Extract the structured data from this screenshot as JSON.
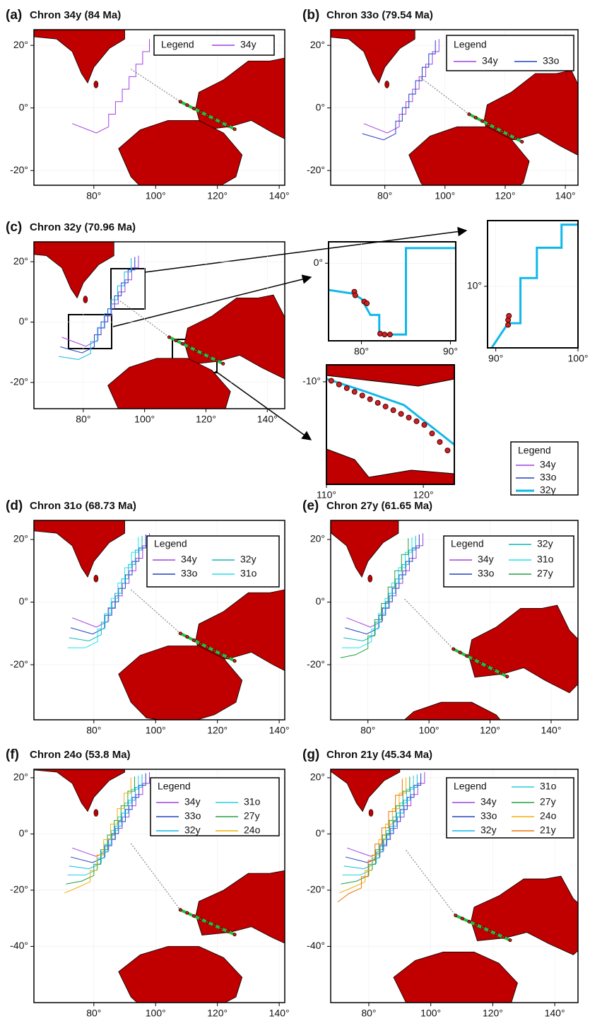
{
  "panels": [
    {
      "label": "(a)",
      "title": "Chron 34y (84 Ma)",
      "xlim": [
        60.6,
        141.8
      ],
      "ylim": [
        -24.7,
        25
      ],
      "xticks": [
        {
          "value": 80,
          "label": "80°"
        },
        {
          "value": 100,
          "label": "100°"
        },
        {
          "value": 120,
          "label": "120°"
        },
        {
          "value": 140,
          "label": "140°"
        }
      ],
      "yticks": [
        {
          "value": 20,
          "label": "20°"
        },
        {
          "value": 0,
          "label": "0°"
        },
        {
          "value": -20,
          "label": "-20°"
        }
      ],
      "legend": {
        "title": "Legend",
        "entries": [
          {
            "name": "34y",
            "color": "#a040e0"
          }
        ]
      }
    },
    {
      "label": "(b)",
      "title": "Chron 33o (79.54 Ma)",
      "xlim": [
        62,
        144.2
      ],
      "ylim": [
        -24.7,
        25
      ],
      "xticks": [
        {
          "value": 80,
          "label": "80°"
        },
        {
          "value": 100,
          "label": "100°"
        },
        {
          "value": 120,
          "label": "120°"
        },
        {
          "value": 140,
          "label": "140°"
        }
      ],
      "yticks": [
        {
          "value": 20,
          "label": "20°"
        },
        {
          "value": 0,
          "label": "0°"
        },
        {
          "value": -20,
          "label": "-20°"
        }
      ],
      "legend": {
        "title": "Legend",
        "entries": [
          {
            "name": "34y",
            "color": "#a040e0"
          },
          {
            "name": "33o",
            "color": "#2040c0"
          }
        ]
      }
    },
    {
      "label": "(c)",
      "title": "Chron 32y (70.96 Ma)",
      "xlim": [
        63.9,
        145.7
      ],
      "ylim": [
        -28.7,
        26.6
      ],
      "xticks": [
        {
          "value": 80,
          "label": "80°"
        },
        {
          "value": 100,
          "label": "100°"
        },
        {
          "value": 120,
          "label": "120°"
        },
        {
          "value": 140,
          "label": "140°"
        }
      ],
      "yticks": [
        {
          "value": 20,
          "label": "20°"
        },
        {
          "value": 0,
          "label": "0°"
        },
        {
          "value": -20,
          "label": "-20°"
        }
      ],
      "legend": {
        "title": "Legend",
        "entries": [
          {
            "name": "34y",
            "color": "#a040e0"
          },
          {
            "name": "33o",
            "color": "#2040c0"
          },
          {
            "name": "32y",
            "color": "#10b8e8"
          }
        ]
      }
    },
    {
      "label": "(d)",
      "title": "Chron 31o (68.73 Ma)",
      "xlim": [
        60.6,
        141.8
      ],
      "ylim": [
        -37.6,
        26.1
      ],
      "xticks": [
        {
          "value": 80,
          "label": "80°"
        },
        {
          "value": 100,
          "label": "100°"
        },
        {
          "value": 120,
          "label": "120°"
        },
        {
          "value": 140,
          "label": "140°"
        }
      ],
      "yticks": [
        {
          "value": 20,
          "label": "20°"
        },
        {
          "value": 0,
          "label": "0°"
        },
        {
          "value": -20,
          "label": "-20°"
        }
      ],
      "legend": {
        "title": "Legend",
        "entries": [
          {
            "name": "34y",
            "color": "#a040e0"
          },
          {
            "name": "33o",
            "color": "#2040c0"
          },
          {
            "name": "32y",
            "color": "#10b8b8"
          },
          {
            "name": "31o",
            "color": "#20e0f0"
          }
        ]
      }
    },
    {
      "label": "(e)",
      "title": "Chron 27y (61.65 Ma)",
      "xlim": [
        67.8,
        148.8
      ],
      "ylim": [
        -37.6,
        26.1
      ],
      "xticks": [
        {
          "value": 80,
          "label": "80°"
        },
        {
          "value": 100,
          "label": "100°"
        },
        {
          "value": 120,
          "label": "120°"
        },
        {
          "value": 140,
          "label": "140°"
        }
      ],
      "yticks": [
        {
          "value": 20,
          "label": "20°"
        },
        {
          "value": 0,
          "label": "0°"
        },
        {
          "value": -20,
          "label": "-20°"
        }
      ],
      "legend": {
        "title": "Legend",
        "entries": [
          {
            "name": "34y",
            "color": "#a040e0"
          },
          {
            "name": "33o",
            "color": "#2040c0"
          },
          {
            "name": "32y",
            "color": "#10b8b8"
          },
          {
            "name": "31o",
            "color": "#20e0f0"
          },
          {
            "name": "27y",
            "color": "#20a040"
          }
        ]
      }
    },
    {
      "label": "(f)",
      "title": "Chron 24o (53.8 Ma)",
      "xlim": [
        60.6,
        141.8
      ],
      "ylim": [
        -60,
        23
      ],
      "xticks": [
        {
          "value": 80,
          "label": "80°"
        },
        {
          "value": 100,
          "label": "100°"
        },
        {
          "value": 120,
          "label": "120°"
        },
        {
          "value": 140,
          "label": "140°"
        }
      ],
      "yticks": [
        {
          "value": 20,
          "label": "20°"
        },
        {
          "value": 0,
          "label": "0°"
        },
        {
          "value": -20,
          "label": "-20°"
        },
        {
          "value": -40,
          "label": "-40°"
        }
      ],
      "legend": {
        "title": "Legend",
        "entries": [
          {
            "name": "34y",
            "color": "#a040e0"
          },
          {
            "name": "33o",
            "color": "#2040c0"
          },
          {
            "name": "32y",
            "color": "#10b8e8"
          },
          {
            "name": "31o",
            "color": "#20d0e0"
          },
          {
            "name": "27y",
            "color": "#20a040"
          },
          {
            "name": "24o",
            "color": "#f0b000"
          }
        ]
      }
    },
    {
      "label": "(g)",
      "title": "Chron 21y (45.34 Ma)",
      "xlim": [
        67.7,
        147.5
      ],
      "ylim": [
        -60,
        23
      ],
      "xticks": [
        {
          "value": 80,
          "label": "80°"
        },
        {
          "value": 100,
          "label": "100°"
        },
        {
          "value": 120,
          "label": "120°"
        },
        {
          "value": 140,
          "label": "140°"
        }
      ],
      "yticks": [
        {
          "value": 20,
          "label": "20°"
        },
        {
          "value": 0,
          "label": "0°"
        },
        {
          "value": -20,
          "label": "-20°"
        },
        {
          "value": -40,
          "label": "-40°"
        }
      ],
      "legend": {
        "title": "Legend",
        "entries": [
          {
            "name": "34y",
            "color": "#a040e0"
          },
          {
            "name": "33o",
            "color": "#2040c0"
          },
          {
            "name": "32y",
            "color": "#10b8e8"
          },
          {
            "name": "31o",
            "color": "#20d0e0"
          },
          {
            "name": "27y",
            "color": "#20a040"
          },
          {
            "name": "24o",
            "color": "#f0b000"
          },
          {
            "name": "21y",
            "color": "#f07000"
          }
        ]
      }
    }
  ],
  "insets": [
    {
      "xlim": [
        76.3,
        90.6
      ],
      "ylim": [
        -8.7,
        2.4
      ],
      "xticks": [
        {
          "value": 80,
          "label": "80°"
        },
        {
          "value": 90,
          "label": "90°"
        }
      ],
      "yticks": [
        {
          "value": 0,
          "label": "0°"
        }
      ]
    },
    {
      "xlim": [
        89,
        100
      ],
      "ylim": [
        2.5,
        18
      ],
      "xticks": [
        {
          "value": 90,
          "label": "90°"
        },
        {
          "value": 100,
          "label": "100°"
        }
      ],
      "yticks": [
        {
          "value": 10,
          "label": "10°"
        }
      ]
    },
    {
      "xlim": [
        110,
        123.2
      ],
      "ylim": [
        -20.6,
        -8.25
      ],
      "xticks": [
        {
          "value": 110,
          "label": "110°"
        },
        {
          "value": 120,
          "label": "120°"
        }
      ],
      "yticks": [
        {
          "value": -10,
          "label": "-10°"
        }
      ]
    }
  ]
}
